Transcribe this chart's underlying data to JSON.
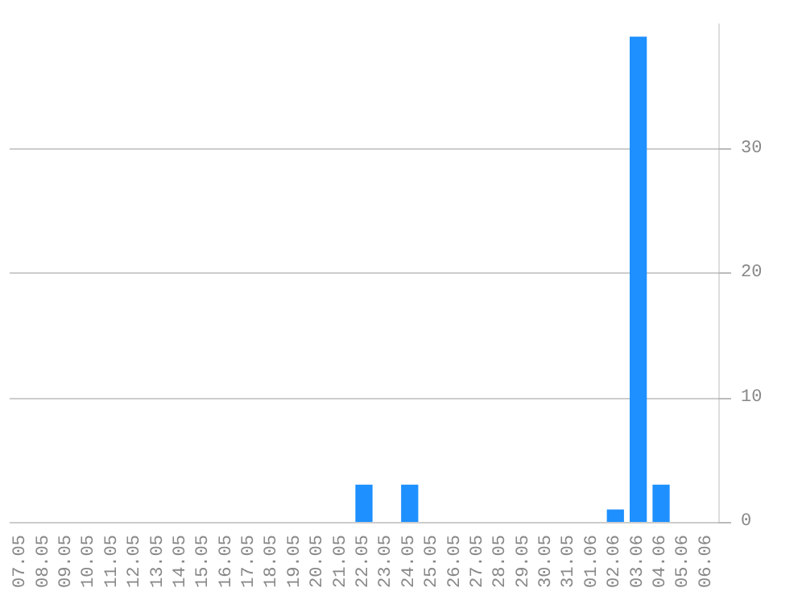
{
  "chart_data": {
    "type": "bar",
    "categories": [
      "07.05",
      "08.05",
      "09.05",
      "10.05",
      "11.05",
      "12.05",
      "13.05",
      "14.05",
      "15.05",
      "16.05",
      "17.05",
      "18.05",
      "19.05",
      "20.05",
      "21.05",
      "22.05",
      "23.05",
      "24.05",
      "25.05",
      "26.05",
      "27.05",
      "28.05",
      "29.05",
      "30.05",
      "31.05",
      "01.06",
      "02.06",
      "03.06",
      "04.06",
      "05.06",
      "06.06"
    ],
    "values": [
      0,
      0,
      0,
      0,
      0,
      0,
      0,
      0,
      0,
      0,
      0,
      0,
      0,
      0,
      0,
      3,
      0,
      3,
      0,
      0,
      0,
      0,
      0,
      0,
      0,
      0,
      1,
      39,
      3,
      0,
      0
    ],
    "color": "#1e90ff",
    "ylim": [
      0,
      40
    ],
    "yticks": [
      0,
      10,
      20,
      30
    ],
    "grid": "y"
  }
}
